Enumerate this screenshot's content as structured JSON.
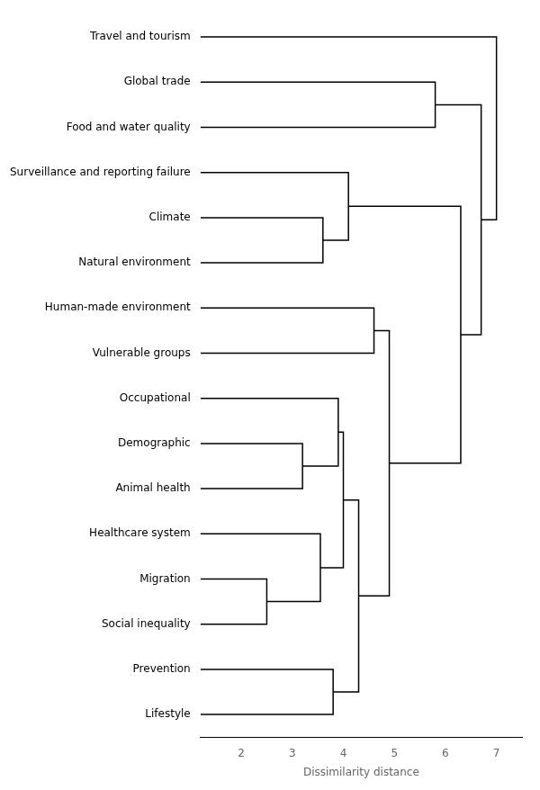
{
  "chart_data": {
    "type": "dendrogram",
    "categories": [
      "Travel and tourism",
      "Global trade",
      "Food and water quality",
      "Surveillance and reporting failure",
      "Climate",
      "Natural environment",
      "Human-made environment",
      "Vulnerable groups",
      "Occupational",
      "Demographic",
      "Animal health",
      "Healthcare system",
      "Migration",
      "Social inequality",
      "Prevention",
      "Lifestyle"
    ],
    "xlabel": "Dissimilarity distance",
    "xlim": [
      1.2,
      7.5
    ],
    "xticks": [
      2,
      3,
      4,
      5,
      6,
      7
    ],
    "color": "#000000",
    "grid": false,
    "tree": {
      "dist": 7.0,
      "left": "Travel and tourism",
      "right": {
        "dist": 6.7,
        "left": {
          "dist": 5.8,
          "left": "Global trade",
          "right": "Food and water quality"
        },
        "right": {
          "dist": 6.3,
          "left": {
            "dist": 4.1,
            "left": "Surveillance and reporting failure",
            "right": {
              "dist": 3.6,
              "left": "Climate",
              "right": "Natural environment"
            }
          },
          "right": {
            "dist": 4.9,
            "left": {
              "dist": 4.6,
              "left": "Human-made environment",
              "right": "Vulnerable groups"
            },
            "right": {
              "dist": 4.3,
              "left": {
                "dist": 4.0,
                "left": {
                  "dist": 3.9,
                  "left": "Occupational",
                  "right": {
                    "dist": 3.2,
                    "left": "Demographic",
                    "right": "Animal health"
                  }
                },
                "right": {
                  "dist": 3.55,
                  "left": "Healthcare system",
                  "right": {
                    "dist": 2.5,
                    "left": "Migration",
                    "right": "Social inequality"
                  }
                }
              },
              "right": {
                "dist": 3.8,
                "left": "Prevention",
                "right": "Lifestyle"
              }
            }
          }
        }
      }
    }
  }
}
